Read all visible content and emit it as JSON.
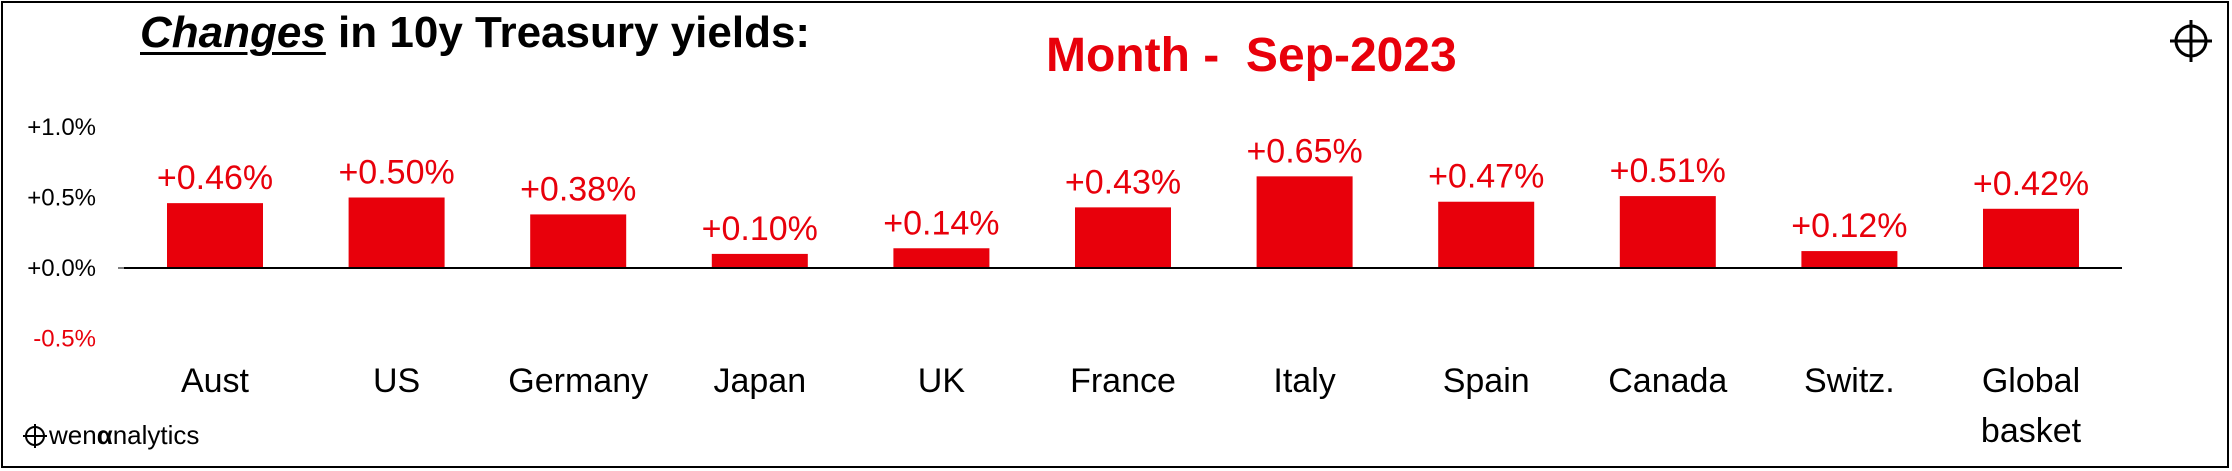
{
  "title": {
    "emphasis": "Changes",
    "rest": " in 10y Treasury yields:"
  },
  "subtitle": "Month -  Sep-2023",
  "branding": {
    "text_prefix": "wen ",
    "alpha": "α",
    "text_suffix": "nalytics",
    "logo_icon": "crosshair-circle-icon"
  },
  "corner_icon": "crosshair-circle-icon",
  "colors": {
    "bar": "#e8000b",
    "label": "#e8000b",
    "axis": "#000000",
    "negative_tick": "#e8000b"
  },
  "chart_data": {
    "type": "bar",
    "categories": [
      [
        "Aust"
      ],
      [
        "US"
      ],
      [
        "Germany"
      ],
      [
        "Japan"
      ],
      [
        "UK"
      ],
      [
        "France"
      ],
      [
        "Italy"
      ],
      [
        "Spain"
      ],
      [
        "Canada"
      ],
      [
        "Switz."
      ],
      [
        "Global",
        "basket"
      ]
    ],
    "values": [
      0.46,
      0.5,
      0.38,
      0.1,
      0.14,
      0.43,
      0.65,
      0.47,
      0.51,
      0.12,
      0.42
    ],
    "data_labels": [
      "+0.46%",
      "+0.50%",
      "+0.38%",
      "+0.10%",
      "+0.14%",
      "+0.43%",
      "+0.65%",
      "+0.47%",
      "+0.51%",
      "+0.12%",
      "+0.42%"
    ],
    "yticks": [
      1.0,
      0.5,
      0.0,
      -0.5
    ],
    "ytick_labels": [
      "+1.0%",
      "+0.5%",
      "+0.0%",
      "-0.5%"
    ],
    "ylim": [
      -0.5,
      1.0
    ],
    "xlabel": "",
    "ylabel": "",
    "grid": false,
    "legend": "none"
  }
}
